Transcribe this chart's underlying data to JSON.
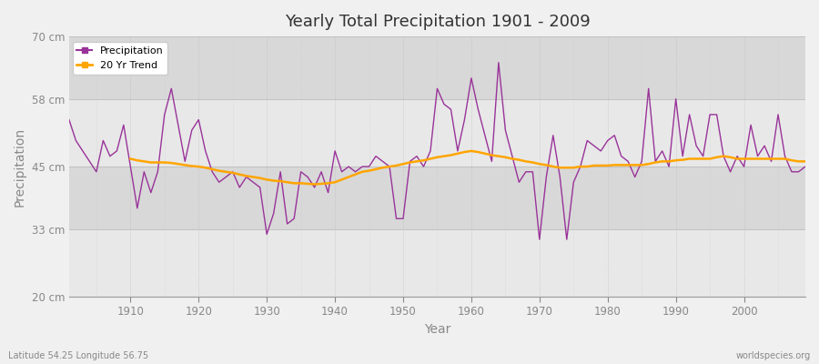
{
  "title": "Yearly Total Precipitation 1901 - 2009",
  "xlabel": "Year",
  "ylabel": "Precipitation",
  "lat_lon_label": "Latitude 54.25 Longitude 56.75",
  "watermark": "worldspecies.org",
  "ylim": [
    20,
    70
  ],
  "yticks": [
    20,
    33,
    45,
    58,
    70
  ],
  "ytick_labels": [
    "20 cm",
    "33 cm",
    "45 cm",
    "58 cm",
    "70 cm"
  ],
  "xlim": [
    1901,
    2009
  ],
  "xticks": [
    1910,
    1920,
    1930,
    1940,
    1950,
    1960,
    1970,
    1980,
    1990,
    2000
  ],
  "precip_color": "#993399",
  "trend_color": "#ffa500",
  "fig_bg_color": "#f0f0f0",
  "band_light": "#e8e8e8",
  "band_dark": "#d8d8d8",
  "grid_color": "#cccccc",
  "years": [
    1901,
    1902,
    1903,
    1904,
    1905,
    1906,
    1907,
    1908,
    1909,
    1910,
    1911,
    1912,
    1913,
    1914,
    1915,
    1916,
    1917,
    1918,
    1919,
    1920,
    1921,
    1922,
    1923,
    1924,
    1925,
    1926,
    1927,
    1928,
    1929,
    1930,
    1931,
    1932,
    1933,
    1934,
    1935,
    1936,
    1937,
    1938,
    1939,
    1940,
    1941,
    1942,
    1943,
    1944,
    1945,
    1946,
    1947,
    1948,
    1949,
    1950,
    1951,
    1952,
    1953,
    1954,
    1955,
    1956,
    1957,
    1958,
    1959,
    1960,
    1961,
    1962,
    1963,
    1964,
    1965,
    1966,
    1967,
    1968,
    1969,
    1970,
    1971,
    1972,
    1973,
    1974,
    1975,
    1976,
    1977,
    1978,
    1979,
    1980,
    1981,
    1982,
    1983,
    1984,
    1985,
    1986,
    1987,
    1988,
    1989,
    1990,
    1991,
    1992,
    1993,
    1994,
    1995,
    1996,
    1997,
    1998,
    1999,
    2000,
    2001,
    2002,
    2003,
    2004,
    2005,
    2006,
    2007,
    2008,
    2009
  ],
  "precip": [
    54,
    50,
    48,
    46,
    44,
    50,
    47,
    48,
    53,
    45,
    37,
    44,
    40,
    44,
    55,
    60,
    53,
    46,
    52,
    54,
    48,
    44,
    42,
    43,
    44,
    41,
    43,
    42,
    41,
    32,
    36,
    44,
    34,
    35,
    44,
    43,
    41,
    44,
    40,
    48,
    44,
    45,
    44,
    45,
    45,
    47,
    46,
    45,
    35,
    35,
    46,
    47,
    45,
    48,
    60,
    57,
    56,
    48,
    54,
    62,
    56,
    51,
    46,
    65,
    52,
    47,
    42,
    44,
    44,
    31,
    43,
    51,
    43,
    31,
    42,
    45,
    50,
    49,
    48,
    50,
    51,
    47,
    46,
    43,
    46,
    60,
    46,
    48,
    45,
    58,
    47,
    55,
    49,
    47,
    55,
    55,
    47,
    44,
    47,
    45,
    53,
    47,
    49,
    46,
    55,
    47,
    44,
    44,
    45
  ],
  "trend": [
    null,
    null,
    null,
    null,
    null,
    null,
    null,
    null,
    null,
    46.5,
    46.2,
    46.0,
    45.8,
    45.8,
    45.8,
    45.7,
    45.5,
    45.3,
    45.1,
    45.0,
    44.8,
    44.5,
    44.2,
    44.0,
    43.8,
    43.5,
    43.2,
    43.0,
    42.8,
    42.5,
    42.3,
    42.2,
    42.0,
    41.8,
    41.8,
    41.7,
    41.6,
    41.7,
    41.8,
    42.0,
    42.5,
    43.0,
    43.5,
    44.0,
    44.2,
    44.5,
    44.8,
    45.0,
    45.2,
    45.5,
    45.8,
    46.0,
    46.2,
    46.5,
    46.8,
    47.0,
    47.2,
    47.5,
    47.8,
    48.0,
    47.8,
    47.5,
    47.2,
    47.0,
    46.8,
    46.5,
    46.3,
    46.0,
    45.8,
    45.5,
    45.3,
    45.0,
    44.8,
    44.8,
    44.8,
    45.0,
    45.0,
    45.2,
    45.2,
    45.2,
    45.3,
    45.3,
    45.3,
    45.3,
    45.3,
    45.5,
    45.8,
    46.0,
    46.0,
    46.2,
    46.3,
    46.5,
    46.5,
    46.5,
    46.5,
    46.8,
    47.0,
    46.8,
    46.5,
    46.5,
    46.5,
    46.5,
    46.5,
    46.5,
    46.5,
    46.5,
    46.2,
    46.0,
    46.0
  ],
  "band_colors": [
    "#e0e0e0",
    "#d0d0d0",
    "#e0e0e0",
    "#d0d0d0",
    "#e0e0e0"
  ],
  "band_ranges": [
    [
      20,
      33
    ],
    [
      33,
      45
    ],
    [
      45,
      58
    ],
    [
      58,
      70
    ]
  ]
}
